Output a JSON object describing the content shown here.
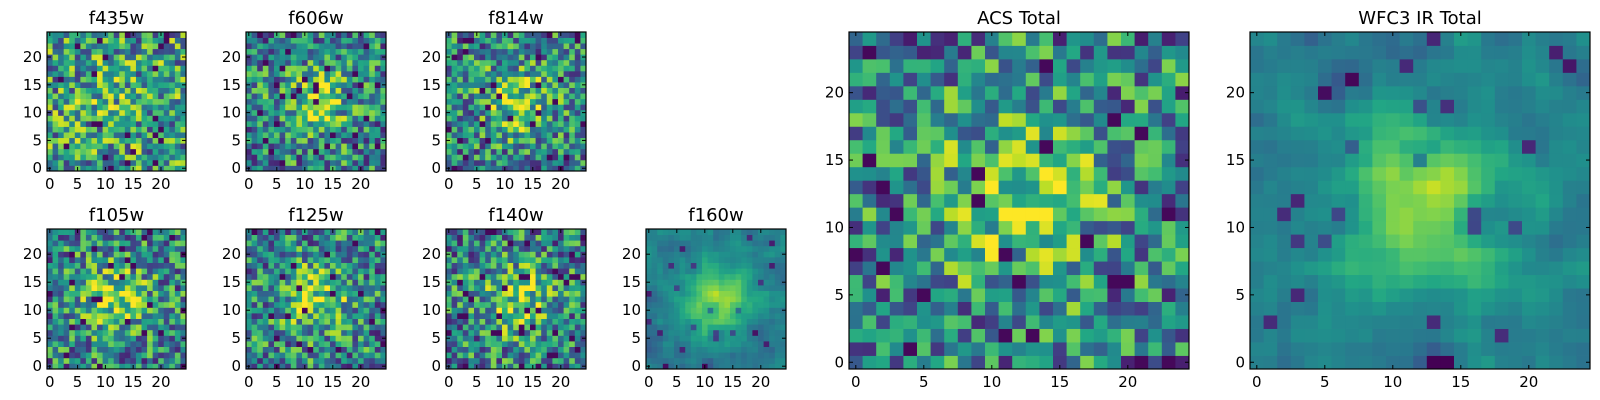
{
  "chart_data": [
    {
      "type": "heatmap",
      "title": "f435w",
      "xlim": [
        0,
        24
      ],
      "ylim": [
        0,
        24
      ],
      "xticks": [
        0,
        5,
        10,
        15,
        20
      ],
      "yticks": [
        0,
        5,
        10,
        15,
        20
      ],
      "grid": false,
      "colormap": "viridis"
    },
    {
      "type": "heatmap",
      "title": "f606w",
      "xlim": [
        0,
        24
      ],
      "ylim": [
        0,
        24
      ],
      "xticks": [
        0,
        5,
        10,
        15,
        20
      ],
      "yticks": [
        0,
        5,
        10,
        15,
        20
      ],
      "grid": false,
      "colormap": "viridis"
    },
    {
      "type": "heatmap",
      "title": "f814w",
      "xlim": [
        0,
        24
      ],
      "ylim": [
        0,
        24
      ],
      "xticks": [
        0,
        5,
        10,
        15,
        20
      ],
      "yticks": [
        0,
        5,
        10,
        15,
        20
      ],
      "grid": false,
      "colormap": "viridis"
    },
    {
      "type": "heatmap",
      "title": "f105w",
      "xlim": [
        0,
        24
      ],
      "ylim": [
        0,
        24
      ],
      "xticks": [
        0,
        5,
        10,
        15,
        20
      ],
      "yticks": [
        0,
        5,
        10,
        15,
        20
      ],
      "grid": false,
      "colormap": "viridis"
    },
    {
      "type": "heatmap",
      "title": "f125w",
      "xlim": [
        0,
        24
      ],
      "ylim": [
        0,
        24
      ],
      "xticks": [
        0,
        5,
        10,
        15,
        20
      ],
      "yticks": [
        0,
        5,
        10,
        15,
        20
      ],
      "grid": false,
      "colormap": "viridis"
    },
    {
      "type": "heatmap",
      "title": "f140w",
      "xlim": [
        0,
        24
      ],
      "ylim": [
        0,
        24
      ],
      "xticks": [
        0,
        5,
        10,
        15,
        20
      ],
      "yticks": [
        0,
        5,
        10,
        15,
        20
      ],
      "grid": false,
      "colormap": "viridis"
    },
    {
      "type": "heatmap",
      "title": "f160w",
      "xlim": [
        0,
        24
      ],
      "ylim": [
        0,
        24
      ],
      "xticks": [
        0,
        5,
        10,
        15,
        20
      ],
      "yticks": [
        0,
        5,
        10,
        15,
        20
      ],
      "grid": false,
      "colormap": "viridis"
    },
    {
      "type": "heatmap",
      "title": "ACS Total",
      "xlim": [
        0,
        24
      ],
      "ylim": [
        0,
        24
      ],
      "xticks": [
        0,
        5,
        10,
        15,
        20
      ],
      "yticks": [
        0,
        5,
        10,
        15,
        20
      ],
      "grid": false,
      "colormap": "viridis"
    },
    {
      "type": "heatmap",
      "title": "WFC3 IR Total",
      "xlim": [
        0,
        24
      ],
      "ylim": [
        0,
        24
      ],
      "xticks": [
        0,
        5,
        10,
        15,
        20
      ],
      "yticks": [
        0,
        5,
        10,
        15,
        20
      ],
      "grid": false,
      "colormap": "viridis"
    }
  ]
}
